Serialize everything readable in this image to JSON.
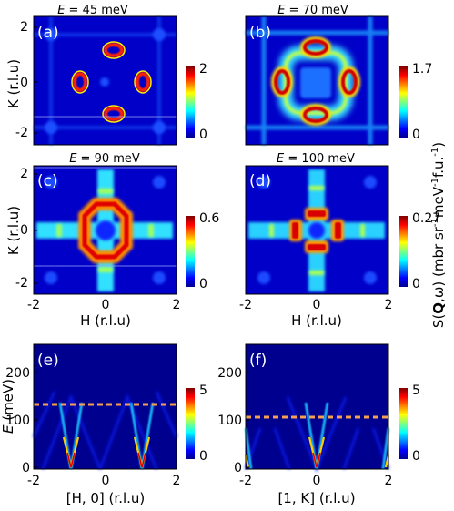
{
  "figure": {
    "right_axis_label": "S(Q,ω) (mbr sr⁻¹meV⁻¹f.u.⁻¹)",
    "hidden_label": "S(Q,ω)"
  },
  "chart_data": [
    {
      "type": "heatmap",
      "panel": "(a)",
      "title": "E = 45 meV",
      "xlabel": "",
      "ylabel": "K (r.l.u)",
      "xlim": [
        -2,
        2
      ],
      "ylim": [
        -2.4,
        2.3
      ],
      "xticks": [],
      "yticks": [
        "-2",
        "0",
        "2"
      ],
      "colorbar": {
        "min": 0,
        "max": 2,
        "labels": [
          "2",
          "0"
        ]
      },
      "features": [
        {
          "shape": "ellipse",
          "center": [
            0,
            1.2
          ],
          "note": "red ring, horizontal"
        },
        {
          "shape": "ellipse",
          "center": [
            0,
            -1.2
          ],
          "note": "red ring, horizontal"
        },
        {
          "shape": "ellipse",
          "center": [
            -1.2,
            0
          ],
          "note": "red ring, vertical"
        },
        {
          "shape": "ellipse",
          "center": [
            1.2,
            0
          ],
          "note": "red ring, vertical"
        }
      ]
    },
    {
      "type": "heatmap",
      "panel": "(b)",
      "title": "E = 70 meV",
      "xlabel": "",
      "ylabel": "",
      "xlim": [
        -2,
        2
      ],
      "ylim": [
        -2.4,
        2.3
      ],
      "xticks": [],
      "yticks": [],
      "colorbar": {
        "min": 0,
        "max": 1.7,
        "labels": [
          "1.7",
          "0"
        ]
      },
      "features": [
        {
          "shape": "ellipse",
          "center": [
            0,
            1.4
          ]
        },
        {
          "shape": "ellipse",
          "center": [
            0,
            -1.4
          ]
        },
        {
          "shape": "ellipse",
          "center": [
            -1.4,
            0
          ]
        },
        {
          "shape": "ellipse",
          "center": [
            1.4,
            0
          ]
        },
        {
          "shape": "rounded-square-ring",
          "center": [
            0,
            0
          ],
          "half_width": 0.85
        }
      ]
    },
    {
      "type": "heatmap",
      "panel": "(c)",
      "title": "E = 90 meV",
      "xlabel": "H (r.l.u)",
      "ylabel": "K (r.l.u)",
      "xlim": [
        -2,
        2
      ],
      "ylim": [
        -2.4,
        2.3
      ],
      "xticks": [
        "-2",
        "0",
        "2"
      ],
      "yticks": [
        "-2",
        "0",
        "2"
      ],
      "colorbar": {
        "min": 0,
        "max": 0.6,
        "labels": [
          "0.6",
          "0"
        ]
      },
      "features": [
        {
          "shape": "octagon-ring",
          "center": [
            0,
            0
          ],
          "radius": 0.65
        },
        {
          "shape": "cross-stripes",
          "center": [
            0,
            0
          ]
        }
      ]
    },
    {
      "type": "heatmap",
      "panel": "(d)",
      "title": "E = 100 meV",
      "xlabel": "H (r.l.u)",
      "ylabel": "",
      "xlim": [
        -2,
        2
      ],
      "ylim": [
        -2.4,
        2.3
      ],
      "xticks": [
        "-2",
        "0",
        "2"
      ],
      "yticks": [],
      "colorbar": {
        "min": 0,
        "max": 0.27,
        "labels": [
          "0.27",
          "0"
        ]
      },
      "features": [
        {
          "shape": "four-bars",
          "center": [
            0,
            0
          ],
          "distance": 0.45
        },
        {
          "shape": "cross-stripes",
          "center": [
            0,
            0
          ]
        }
      ]
    },
    {
      "type": "heatmap",
      "panel": "(e)",
      "title": "",
      "xlabel": "[H, 0] (r.l.u)",
      "ylabel": "E (meV)",
      "xlim": [
        -2,
        2
      ],
      "ylim": [
        0,
        230
      ],
      "xticks": [
        "-2",
        "0",
        "2"
      ],
      "yticks": [
        "0",
        "100",
        "200"
      ],
      "colorbar": {
        "min": 0,
        "max": 5,
        "labels": [
          "5",
          "0"
        ]
      },
      "dashed_line": {
        "y": 100,
        "color": "#f5a050"
      },
      "dispersion": {
        "mode_centers": [
          -1,
          1
        ],
        "slope_meV_per_rlu": 170,
        "top_meV": 140
      }
    },
    {
      "type": "heatmap",
      "panel": "(f)",
      "title": "",
      "xlabel": "[1, K] (r.l.u)",
      "ylabel": "",
      "xlim": [
        -2,
        2
      ],
      "ylim": [
        0,
        230
      ],
      "xticks": [
        "-2",
        "0",
        "2"
      ],
      "yticks": [
        "0",
        "100",
        "200"
      ],
      "colorbar": {
        "min": 0,
        "max": 5,
        "labels": [
          "5",
          "0"
        ]
      },
      "dashed_line": {
        "y": 80,
        "color": "#f5a050"
      },
      "dispersion": {
        "mode_centers": [
          -2,
          0,
          2
        ],
        "slope_meV_per_rlu": 170,
        "top_meV": 140
      }
    }
  ]
}
